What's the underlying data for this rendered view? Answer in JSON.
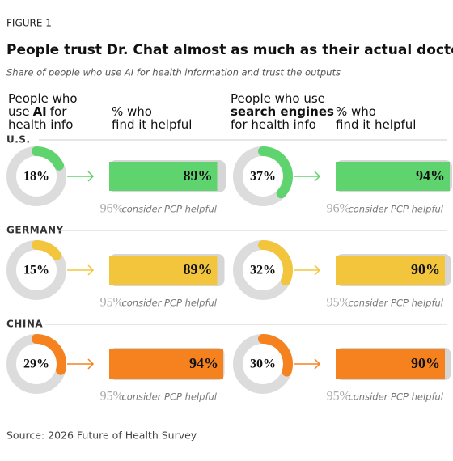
{
  "figure_label": "FIGURE 1",
  "title": "People trust Dr. Chat almost as much as their actual doctors",
  "subtitle": "Share of people who use AI for health information and trust the outputs",
  "headers": {
    "ai_usage": [
      [
        {
          "text": "People who"
        }
      ],
      [
        {
          "text": "use"
        },
        {
          "text": "AI",
          "bold": true
        },
        {
          "text": "for"
        }
      ],
      [
        {
          "text": "health info"
        }
      ]
    ],
    "ai_helpful": [
      [
        {
          "text": "% who"
        }
      ],
      [
        {
          "text": "find it helpful"
        }
      ]
    ],
    "search_usage": [
      [
        {
          "text": "People who use"
        }
      ],
      [
        {
          "text": "search engines",
          "bold": true
        }
      ],
      [
        {
          "text": "for health info"
        }
      ]
    ],
    "search_helpful": [
      [
        {
          "text": "% who"
        }
      ],
      [
        {
          "text": "find it helpful"
        }
      ]
    ]
  },
  "pcp_note": "consider PCP helpful",
  "countries": [
    {
      "name": "U.S.",
      "color": "#5fd46e",
      "ai": {
        "usage": 18,
        "usage_label": "18%",
        "helpful": 89,
        "helpful_label": "89%",
        "pcp": 96,
        "pcp_label": "96%"
      },
      "search": {
        "usage": 37,
        "usage_label": "37%",
        "helpful": 94,
        "helpful_label": "94%",
        "pcp": 96,
        "pcp_label": "96%"
      }
    },
    {
      "name": "GERMANY",
      "color": "#f2c53d",
      "ai": {
        "usage": 15,
        "usage_label": "15%",
        "helpful": 89,
        "helpful_label": "89%",
        "pcp": 95,
        "pcp_label": "95%"
      },
      "search": {
        "usage": 32,
        "usage_label": "32%",
        "helpful": 90,
        "helpful_label": "90%",
        "pcp": 95,
        "pcp_label": "95%"
      }
    },
    {
      "name": "CHINA",
      "color": "#f5821f",
      "ai": {
        "usage": 29,
        "usage_label": "29%",
        "helpful": 94,
        "helpful_label": "94%",
        "pcp": 95,
        "pcp_label": "95%"
      },
      "search": {
        "usage": 30,
        "usage_label": "30%",
        "helpful": 90,
        "helpful_label": "90%",
        "pcp": 95,
        "pcp_label": "95%"
      }
    }
  ],
  "source": "Source: 2026 Future of Health Survey"
}
